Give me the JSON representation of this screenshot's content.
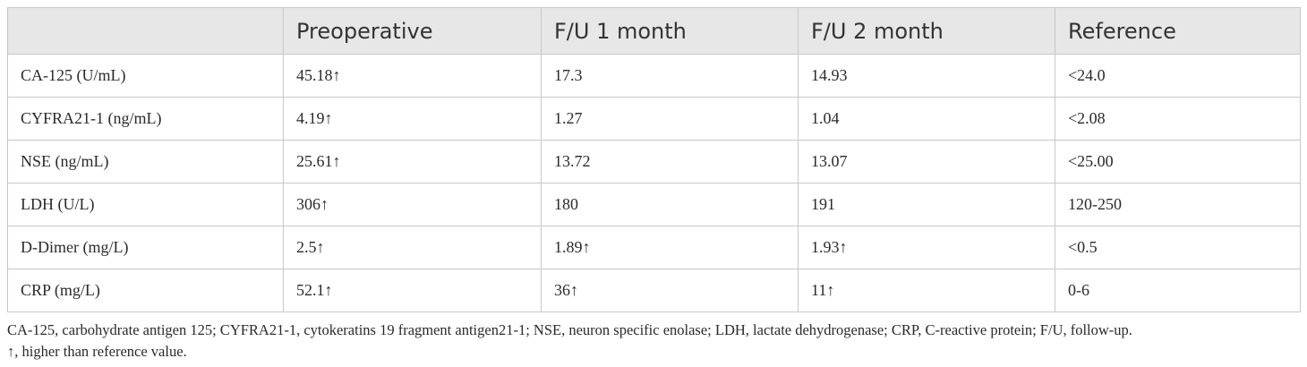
{
  "table": {
    "headers": [
      "",
      "Preoperative",
      "F/U 1 month",
      "F/U 2 month",
      "Reference"
    ],
    "rows": [
      [
        "CA-125 (U/mL)",
        "45.18↑",
        "17.3",
        "14.93",
        "<24.0"
      ],
      [
        "CYFRA21-1 (ng/mL)",
        "4.19↑",
        "1.27",
        "1.04",
        "<2.08"
      ],
      [
        "NSE (ng/mL)",
        "25.61↑",
        "13.72",
        "13.07",
        "<25.00"
      ],
      [
        "LDH (U/L)",
        "306↑",
        "180",
        "191",
        "120-250"
      ],
      [
        "D-Dimer (mg/L)",
        "2.5↑",
        "1.89↑",
        "1.93↑",
        "<0.5"
      ],
      [
        "CRP (mg/L)",
        "52.1↑",
        "36↑",
        "11↑",
        "0-6"
      ]
    ]
  },
  "footnote": {
    "line1": "CA-125, carbohydrate antigen 125; CYFRA21-1, cytokeratins 19 fragment antigen21-1; NSE, neuron specific enolase; LDH, lactate dehydrogenase; CRP, C-reactive protein; F/U, follow-up.",
    "line2": "↑, higher than reference value."
  },
  "colors": {
    "header_bg": "#e7e7e7",
    "border": "#c8c8c8",
    "text": "#2a2a2a"
  }
}
